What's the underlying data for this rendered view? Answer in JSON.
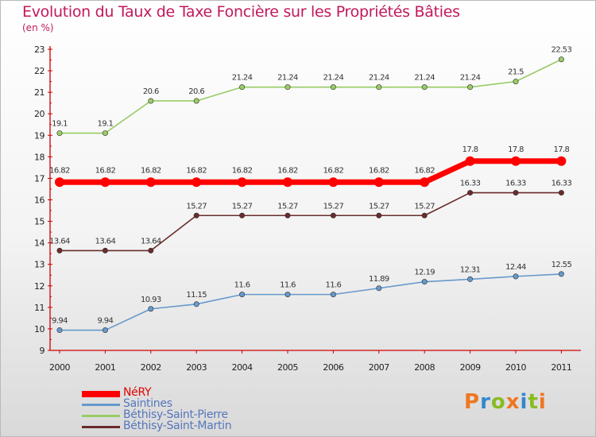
{
  "header": {
    "title": "Evolution du Taux de Taxe Foncière sur les Propriétés Bâties",
    "subtitle": "(en %)"
  },
  "brand": {
    "name": "Proxiti"
  },
  "chart_data": {
    "type": "line",
    "title": "Evolution du Taux de Taxe Foncière sur les Propriétés Bâties",
    "ylabel": "(en %)",
    "xlabel": "",
    "x": [
      "2000",
      "2001",
      "2002",
      "2003",
      "2004",
      "2005",
      "2006",
      "2007",
      "2008",
      "2009",
      "2010",
      "2011"
    ],
    "ylim": [
      9,
      23
    ],
    "yticks": [
      9,
      10,
      11,
      12,
      13,
      14,
      15,
      16,
      17,
      18,
      19,
      20,
      21,
      22,
      23
    ],
    "grid": false,
    "legend": "bottom-left",
    "series": [
      {
        "name": "NéRY",
        "color": "#ff0000",
        "values": [
          16.82,
          16.82,
          16.82,
          16.82,
          16.82,
          16.82,
          16.82,
          16.82,
          16.82,
          17.8,
          17.8,
          17.8
        ]
      },
      {
        "name": "Saintines",
        "color": "#6699cc",
        "values": [
          9.94,
          9.94,
          10.93,
          11.15,
          11.6,
          11.6,
          11.6,
          11.89,
          12.19,
          12.31,
          12.44,
          12.55
        ]
      },
      {
        "name": "Béthisy-Saint-Pierre",
        "color": "#99cc66",
        "values": [
          19.1,
          19.1,
          20.6,
          20.6,
          21.24,
          21.24,
          21.24,
          21.24,
          21.24,
          21.24,
          21.5,
          22.53
        ]
      },
      {
        "name": "Béthisy-Saint-Martin",
        "color": "#6b2b2b",
        "values": [
          13.64,
          13.64,
          13.64,
          15.27,
          15.27,
          15.27,
          15.27,
          15.27,
          15.27,
          16.33,
          16.33,
          16.33
        ]
      }
    ]
  }
}
